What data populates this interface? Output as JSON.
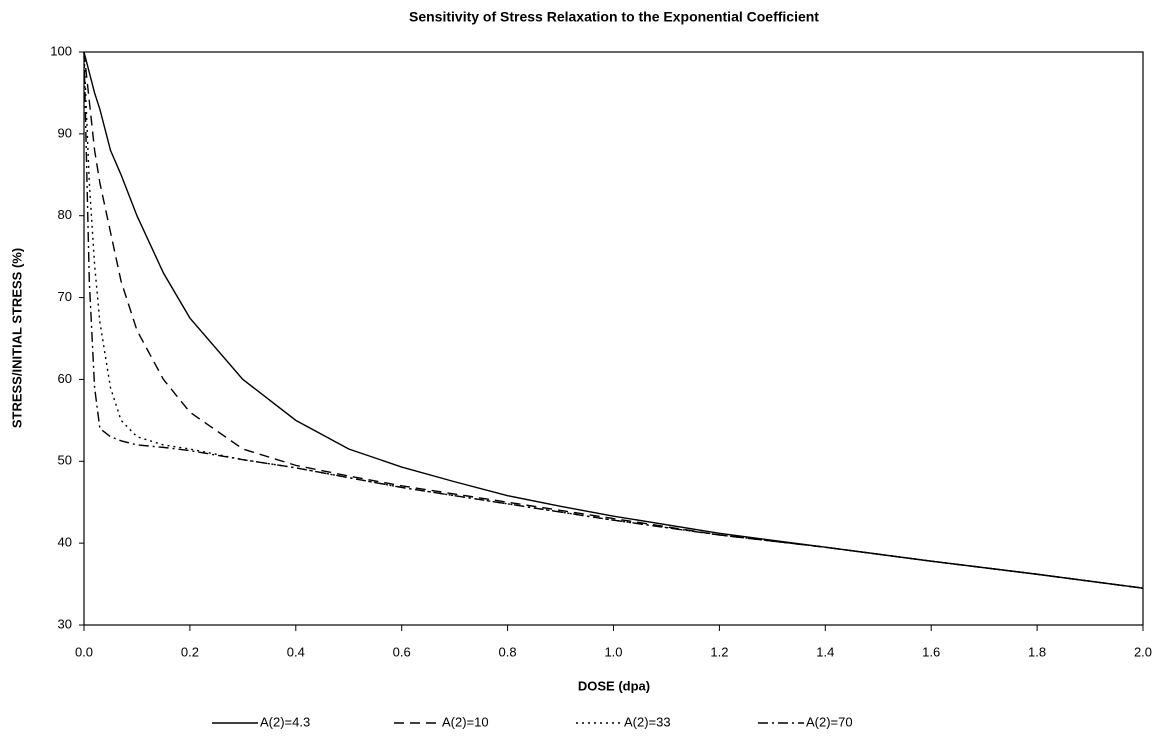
{
  "chart_data": {
    "type": "line",
    "title": "Sensitivity of Stress Relaxation to the Exponential Coefficient",
    "xlabel": "DOSE (dpa)",
    "ylabel": "STRESS/INITIAL STRESS (%)",
    "x": [
      0,
      0.01,
      0.02,
      0.03,
      0.05,
      0.07,
      0.1,
      0.15,
      0.2,
      0.3,
      0.4,
      0.5,
      0.6,
      0.7,
      0.8,
      0.9,
      1.0,
      1.2,
      1.4,
      1.6,
      1.8,
      2.0
    ],
    "series": [
      {
        "name": "A(2)=4.3",
        "color": "#000000",
        "dash": "none",
        "values": [
          100,
          97.5,
          95,
          93,
          88,
          85,
          80,
          73,
          67.5,
          60,
          55,
          51.5,
          49.3,
          47.5,
          45.8,
          44.5,
          43.3,
          41.2,
          39.5,
          37.8,
          36.2,
          34.5
        ]
      },
      {
        "name": "A(2)=10",
        "color": "#000000",
        "dash": "10,6",
        "values": [
          100,
          94,
          88,
          84,
          78,
          72,
          66,
          60,
          56,
          51.5,
          49.5,
          48.2,
          47,
          46,
          45,
          44,
          43,
          41,
          39.5,
          37.8,
          36.2,
          34.5
        ]
      },
      {
        "name": "A(2)=33",
        "color": "#000000",
        "dash": "2,4",
        "values": [
          100,
          84,
          74,
          67,
          59,
          55,
          53,
          52,
          51.5,
          50.2,
          49.2,
          48,
          46.8,
          45.8,
          44.8,
          43.8,
          42.8,
          41,
          39.5,
          37.8,
          36.2,
          34.5
        ]
      },
      {
        "name": "A(2)=70",
        "color": "#000000",
        "dash": "10,4,2,4",
        "values": [
          100,
          72,
          59,
          54,
          53,
          52.5,
          52,
          51.7,
          51.3,
          50.2,
          49.2,
          48,
          46.8,
          45.8,
          44.8,
          43.8,
          42.8,
          41,
          39.5,
          37.8,
          36.2,
          34.5
        ]
      }
    ],
    "xlim": [
      0,
      2
    ],
    "xticks": [
      {
        "value": 0,
        "label": "0.0"
      },
      0.2,
      0.4,
      0.6,
      0.8,
      {
        "value": 1,
        "label": "1.0"
      },
      1.2,
      1.4,
      1.6,
      1.8,
      {
        "value": 2,
        "label": "2.0"
      }
    ],
    "ylim": [
      30,
      100
    ],
    "yticks": [
      30,
      40,
      50,
      60,
      70,
      80,
      90,
      100
    ],
    "grid": false,
    "legend": "bottom"
  }
}
